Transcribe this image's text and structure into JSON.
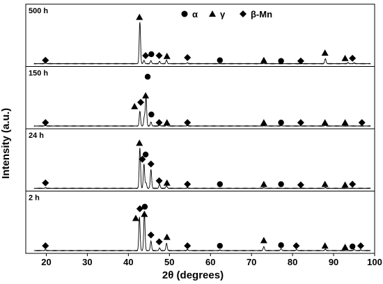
{
  "chart_data": {
    "type": "line",
    "xlabel": "2θ (degrees)",
    "ylabel": "Intensity (a.u.)",
    "xlim": [
      15,
      100
    ],
    "x_ticks": [
      20,
      30,
      40,
      50,
      60,
      70,
      80,
      90,
      100
    ],
    "y_ticks": "none",
    "grid": false,
    "legend": {
      "placement": "top-right",
      "entries": [
        {
          "marker": "circle",
          "label": "α"
        },
        {
          "marker": "triangle",
          "label": "γ"
        },
        {
          "marker": "diamond",
          "label": "β-Mn"
        }
      ]
    },
    "series": [
      {
        "name": "500 h",
        "baseline": 0,
        "peaks": [
          [
            19.8,
            1.2
          ],
          [
            42.8,
            62.0
          ],
          [
            43.8,
            5.0
          ],
          [
            45.5,
            4.5
          ],
          [
            47.6,
            3.5
          ],
          [
            49.3,
            5.5
          ],
          [
            54.4,
            1.3
          ],
          [
            73.0,
            1.0
          ],
          [
            88.0,
            7.5
          ],
          [
            93.5,
            1.5
          ],
          [
            95.0,
            1.2
          ]
        ],
        "markers": [
          {
            "x": 19.8,
            "y": 3,
            "shape": "diamond"
          },
          {
            "x": 42.7,
            "y": 67,
            "shape": "triangle"
          },
          {
            "x": 44.2,
            "y": 10,
            "shape": "diamond"
          },
          {
            "x": 45.6,
            "y": 12,
            "shape": "circle"
          },
          {
            "x": 47.5,
            "y": 10,
            "shape": "diamond"
          },
          {
            "x": 49.4,
            "y": 9,
            "shape": "triangle"
          },
          {
            "x": 54.4,
            "y": 7,
            "shape": "diamond"
          },
          {
            "x": 62.3,
            "y": 3,
            "shape": "circle"
          },
          {
            "x": 73.0,
            "y": 3,
            "shape": "triangle"
          },
          {
            "x": 77.2,
            "y": 2,
            "shape": "circle"
          },
          {
            "x": 82.0,
            "y": 2,
            "shape": "diamond"
          },
          {
            "x": 87.9,
            "y": 14,
            "shape": "triangle"
          },
          {
            "x": 92.8,
            "y": 6,
            "shape": "triangle"
          },
          {
            "x": 94.6,
            "y": 6,
            "shape": "diamond"
          }
        ]
      },
      {
        "name": "150 h",
        "baseline": 0,
        "peaks": [
          [
            19.8,
            0.6
          ],
          [
            42.8,
            22.0
          ],
          [
            43.9,
            14.0
          ],
          [
            44.3,
            42.0
          ],
          [
            45.5,
            6.0
          ],
          [
            47.6,
            1.5
          ],
          [
            49.3,
            1.5
          ],
          [
            54.4,
            0.8
          ],
          [
            73.0,
            0.6
          ],
          [
            77.2,
            0.6
          ],
          [
            88.0,
            1.0
          ]
        ],
        "markers": [
          {
            "x": 19.8,
            "y": 3,
            "shape": "diamond"
          },
          {
            "x": 41.5,
            "y": 27,
            "shape": "triangle"
          },
          {
            "x": 43.0,
            "y": 33,
            "shape": "diamond"
          },
          {
            "x": 44.2,
            "y": 43,
            "shape": "triangle"
          },
          {
            "x": 44.7,
            "y": 71,
            "shape": "circle"
          },
          {
            "x": 45.6,
            "y": 15,
            "shape": "circle"
          },
          {
            "x": 47.5,
            "y": 3,
            "shape": "diamond"
          },
          {
            "x": 49.4,
            "y": 3,
            "shape": "triangle"
          },
          {
            "x": 54.4,
            "y": 3,
            "shape": "diamond"
          },
          {
            "x": 73.0,
            "y": 3,
            "shape": "triangle"
          },
          {
            "x": 77.2,
            "y": 3,
            "shape": "circle"
          },
          {
            "x": 82.0,
            "y": 3,
            "shape": "diamond"
          },
          {
            "x": 87.9,
            "y": 3,
            "shape": "triangle"
          },
          {
            "x": 92.8,
            "y": 3,
            "shape": "triangle"
          },
          {
            "x": 96.9,
            "y": 3,
            "shape": "diamond"
          }
        ]
      },
      {
        "name": "24 h",
        "baseline": 0,
        "peaks": [
          [
            19.8,
            0.8
          ],
          [
            42.8,
            60.0
          ],
          [
            43.8,
            36.0
          ],
          [
            44.3,
            8.0
          ],
          [
            45.5,
            28.0
          ],
          [
            47.6,
            6.0
          ],
          [
            49.3,
            3.5
          ],
          [
            54.4,
            0.8
          ],
          [
            73.0,
            0.8
          ],
          [
            88.0,
            1.0
          ]
        ],
        "markers": [
          {
            "x": 19.8,
            "y": 6,
            "shape": "diamond"
          },
          {
            "x": 42.7,
            "y": 65,
            "shape": "triangle"
          },
          {
            "x": 43.4,
            "y": 41,
            "shape": "diamond"
          },
          {
            "x": 44.2,
            "y": 48,
            "shape": "circle"
          },
          {
            "x": 45.5,
            "y": 34,
            "shape": "diamond"
          },
          {
            "x": 47.5,
            "y": 9,
            "shape": "diamond"
          },
          {
            "x": 49.4,
            "y": 6,
            "shape": "triangle"
          },
          {
            "x": 54.4,
            "y": 4,
            "shape": "diamond"
          },
          {
            "x": 62.3,
            "y": 4,
            "shape": "circle"
          },
          {
            "x": 73.0,
            "y": 4,
            "shape": "triangle"
          },
          {
            "x": 77.2,
            "y": 4,
            "shape": "circle"
          },
          {
            "x": 82.0,
            "y": 3,
            "shape": "diamond"
          },
          {
            "x": 87.9,
            "y": 4,
            "shape": "triangle"
          },
          {
            "x": 92.8,
            "y": 3,
            "shape": "triangle"
          },
          {
            "x": 94.6,
            "y": 4,
            "shape": "diamond"
          }
        ]
      },
      {
        "name": "2 h",
        "baseline": 0,
        "peaks": [
          [
            19.8,
            1.2
          ],
          [
            42.7,
            50.0
          ],
          [
            43.9,
            55.0
          ],
          [
            45.5,
            14.0
          ],
          [
            47.6,
            4.0
          ],
          [
            49.3,
            11.0
          ],
          [
            54.4,
            1.5
          ],
          [
            62.3,
            0.8
          ],
          [
            73.0,
            6.0
          ],
          [
            77.2,
            3.0
          ],
          [
            81.0,
            1.5
          ],
          [
            88.0,
            2.0
          ],
          [
            95.0,
            1.5
          ],
          [
            96.6,
            1.0
          ]
        ],
        "markers": [
          {
            "x": 19.8,
            "y": 5,
            "shape": "diamond"
          },
          {
            "x": 41.8,
            "y": 46,
            "shape": "triangle"
          },
          {
            "x": 42.8,
            "y": 60,
            "shape": "diamond"
          },
          {
            "x": 44.0,
            "y": 63,
            "shape": "circle"
          },
          {
            "x": 43.9,
            "y": 52,
            "shape": "triangle"
          },
          {
            "x": 45.5,
            "y": 21,
            "shape": "diamond"
          },
          {
            "x": 47.5,
            "y": 11,
            "shape": "diamond"
          },
          {
            "x": 49.4,
            "y": 18,
            "shape": "triangle"
          },
          {
            "x": 54.4,
            "y": 5,
            "shape": "diamond"
          },
          {
            "x": 62.3,
            "y": 5,
            "shape": "circle"
          },
          {
            "x": 73.0,
            "y": 13,
            "shape": "triangle"
          },
          {
            "x": 77.2,
            "y": 6,
            "shape": "circle"
          },
          {
            "x": 80.9,
            "y": 5,
            "shape": "diamond"
          },
          {
            "x": 87.9,
            "y": 5,
            "shape": "triangle"
          },
          {
            "x": 92.8,
            "y": 3,
            "shape": "triangle"
          },
          {
            "x": 94.6,
            "y": 4,
            "shape": "circle"
          },
          {
            "x": 96.6,
            "y": 5,
            "shape": "diamond"
          }
        ]
      }
    ]
  },
  "colors": {
    "line": "#000000",
    "frame": "#000000",
    "background": "#ffffff"
  }
}
